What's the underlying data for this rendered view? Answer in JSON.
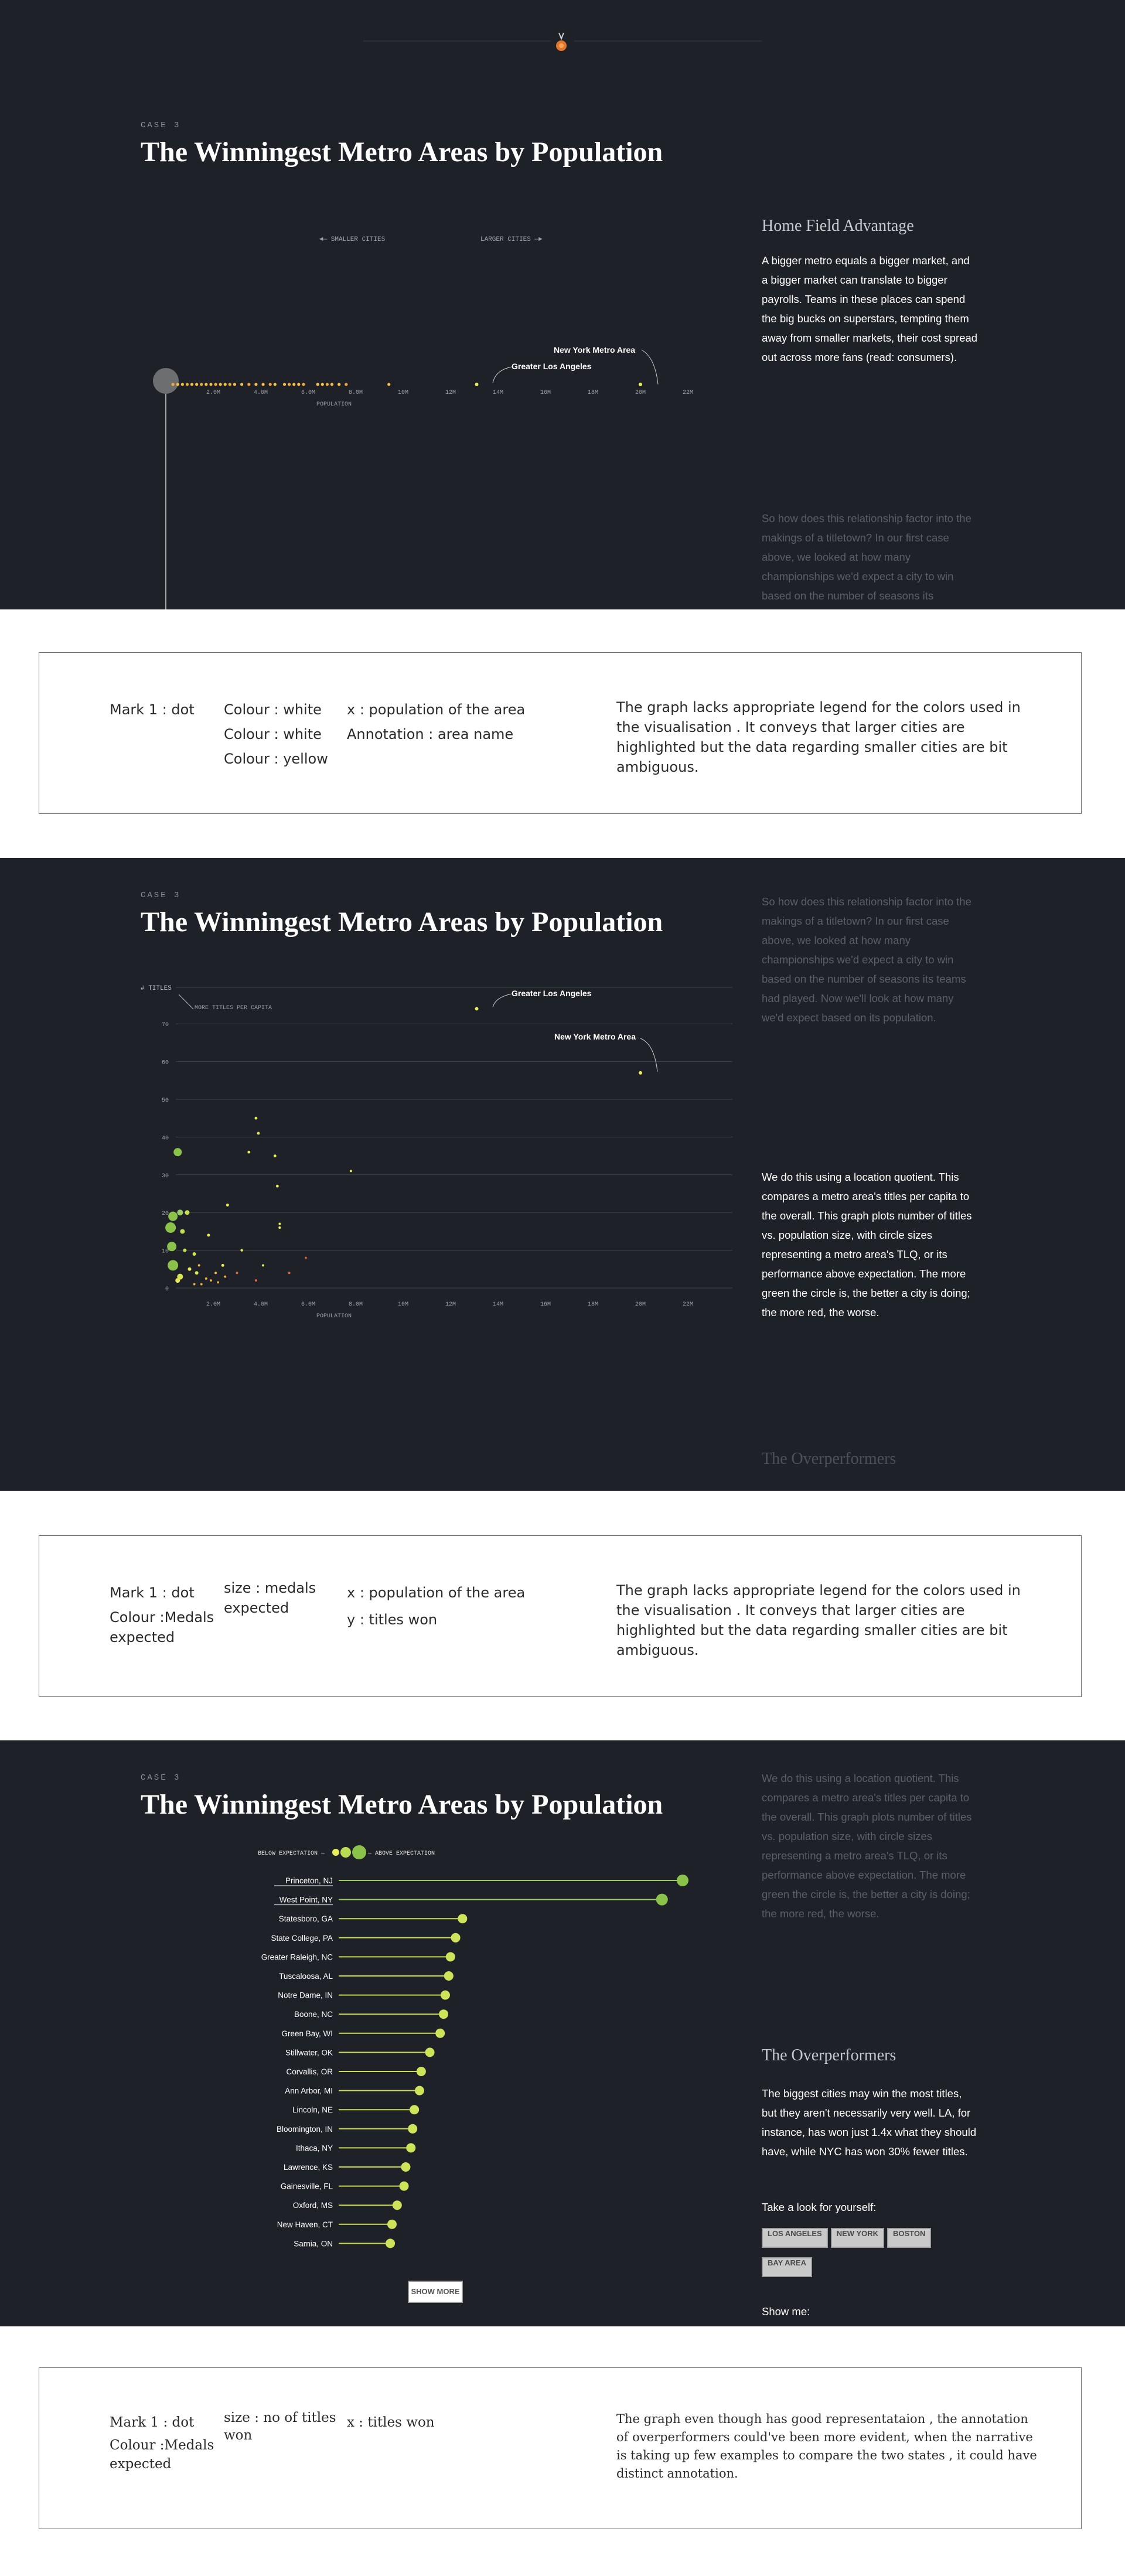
{
  "colors": {
    "background": "#1e2127",
    "dot_yellow": "#e7ec5a",
    "dot_orange": "#f0a93c",
    "dot_green": "#8bc34a",
    "line_green": "#9ccc65"
  },
  "icons": {
    "top_marker": "medal-icon"
  },
  "panel1": {
    "case": "CASE 3",
    "title": "The Winningest Metro Areas by Population",
    "smaller_label": "◄— SMALLER CITIES",
    "larger_label": "LARGER CITIES —►",
    "axis_label": "POPULATION",
    "ticks": [
      "2.0M",
      "4.0M",
      "6.0M",
      "8.0M",
      "10M",
      "12M",
      "14M",
      "16M",
      "18M",
      "20M",
      "22M"
    ],
    "annotations": {
      "ny": "New York Metro Area",
      "la": "Greater Los Angeles"
    },
    "side_heading": "Home Field Advantage",
    "side_text": "A bigger metro equals a bigger market, and a bigger market can translate to bigger payrolls. Teams in these places can spend the big bucks on superstars, tempting them away from smaller markets, their cost spread out across more fans (read: consumers).",
    "side_text_dim": "So how does this relationship factor into the makings of a titletown? In our first case above, we looked at how many championships we'd expect a city to win based on the number of seasons its"
  },
  "box1": {
    "mark": "Mark 1 : dot",
    "colours": [
      "Colour : white",
      "Colour : white",
      "Colour : yellow"
    ],
    "encodings": [
      "x : population of the area",
      "Annotation : area name"
    ],
    "critique": "The graph lacks appropriate legend for the colors used in the visualisation . It conveys that larger cities are highlighted but the data regarding smaller cities are bit ambiguous."
  },
  "panel2": {
    "case": "CASE 3",
    "title": "The Winningest Metro Areas by Population",
    "y_title": "# TITLES",
    "more_label": "MORE TITLES PER CAPITA",
    "y_ticks": [
      "0",
      "10",
      "20",
      "30",
      "40",
      "50",
      "60",
      "70"
    ],
    "ticks": [
      "2.0M",
      "4.0M",
      "6.0M",
      "8.0M",
      "10M",
      "12M",
      "14M",
      "16M",
      "18M",
      "20M",
      "22M"
    ],
    "axis_label": "POPULATION",
    "annotations": {
      "la": "Greater Los Angeles",
      "ny": "New York Metro Area"
    },
    "side_text_dim": "So how does this relationship factor into the makings of a titletown? In our first case above, we looked at how many championships we'd expect a city to win based on the number of seasons its teams had played. Now we'll look at how many we'd expect based on its population.",
    "side_text": "We do this using a location quotient. This compares a metro area's titles per capita to the overall. This graph plots number of titles vs. population size, with circle sizes representing a metro area's TLQ, or its performance above expectation. The more green the circle is, the better a city is doing; the more red, the worse.",
    "side_heading_dim": "The Overperformers"
  },
  "box2": {
    "mark": "Mark 1 : dot",
    "colour": "Colour :Medals expected",
    "size": "size : medals expected",
    "encodings": [
      "x : population of the area",
      "y : titles won"
    ],
    "critique": "The graph lacks appropriate legend for the colors used in the visualisation . It conveys that larger cities are highlighted but the data regarding smaller cities are bit ambiguous."
  },
  "panel3": {
    "case": "CASE 3",
    "title": "The Winningest Metro Areas by Population",
    "legend_below": "BELOW EXPECTATION —",
    "legend_above": "— ABOVE EXPECTATION",
    "show_more": "SHOW MORE",
    "side_text_dim": "We do this using a location quotient. This compares a metro area's titles per capita to the overall. This graph plots number of titles vs. population size, with circle sizes representing a metro area's TLQ, or its performance above expectation. The more green the circle is, the better a city is doing; the more red, the worse.",
    "side_heading": "The Overperformers",
    "side_text": "The biggest cities may win the most titles, but they aren't necessarily very well. LA, for instance, has won just 1.4x what they should have, while NYC has won 30% fewer titles.",
    "take_look": "Take a look for yourself:",
    "buttons": [
      "LOS ANGELES",
      "NEW YORK",
      "BOSTON",
      "BAY AREA"
    ],
    "show_me": "Show me:"
  },
  "chart_data": [
    {
      "type": "scatter",
      "title": "The Winningest Metro Areas by Population",
      "xlabel": "POPULATION",
      "xlim": [
        0,
        23
      ],
      "annotations": [
        "New York Metro Area",
        "Greater Los Angeles"
      ],
      "points": [
        {
          "name": "Greater Los Angeles",
          "x": 13.1
        },
        {
          "name": "New York Metro Area",
          "x": 20.0
        }
      ]
    },
    {
      "type": "scatter",
      "title": "The Winningest Metro Areas by Population",
      "xlabel": "POPULATION",
      "ylabel": "# TITLES",
      "xlim": [
        0,
        23
      ],
      "ylim": [
        0,
        75
      ],
      "points": [
        {
          "name": "Greater Los Angeles",
          "x": 13.1,
          "y": 74
        },
        {
          "name": "New York Metro Area",
          "x": 20.0,
          "y": 57
        }
      ]
    },
    {
      "type": "bar",
      "title": "The Winningest Metro Areas by Population",
      "categories": [
        "Princeton, NJ",
        "West Point, NY",
        "Statesboro, GA",
        "State College, PA",
        "Greater Raleigh, NC",
        "Tuscaloosa, AL",
        "Notre Dame, IN",
        "Boone, NC",
        "Green Bay, WI",
        "Stillwater, OK",
        "Corvallis, OR",
        "Ann Arbor, MI",
        "Lincoln, NE",
        "Bloomington, IN",
        "Ithaca, NY",
        "Lawrence, KS",
        "Gainesville, FL",
        "Oxford, MS",
        "New Haven, CT",
        "Sarnia, ON"
      ],
      "values": [
        100,
        94,
        36,
        34,
        32.5,
        32,
        31,
        30.5,
        29.5,
        26.5,
        24,
        23.5,
        22,
        21.5,
        21,
        19.5,
        19,
        17,
        15.5,
        15
      ],
      "ylim": [
        0,
        100
      ]
    }
  ]
}
